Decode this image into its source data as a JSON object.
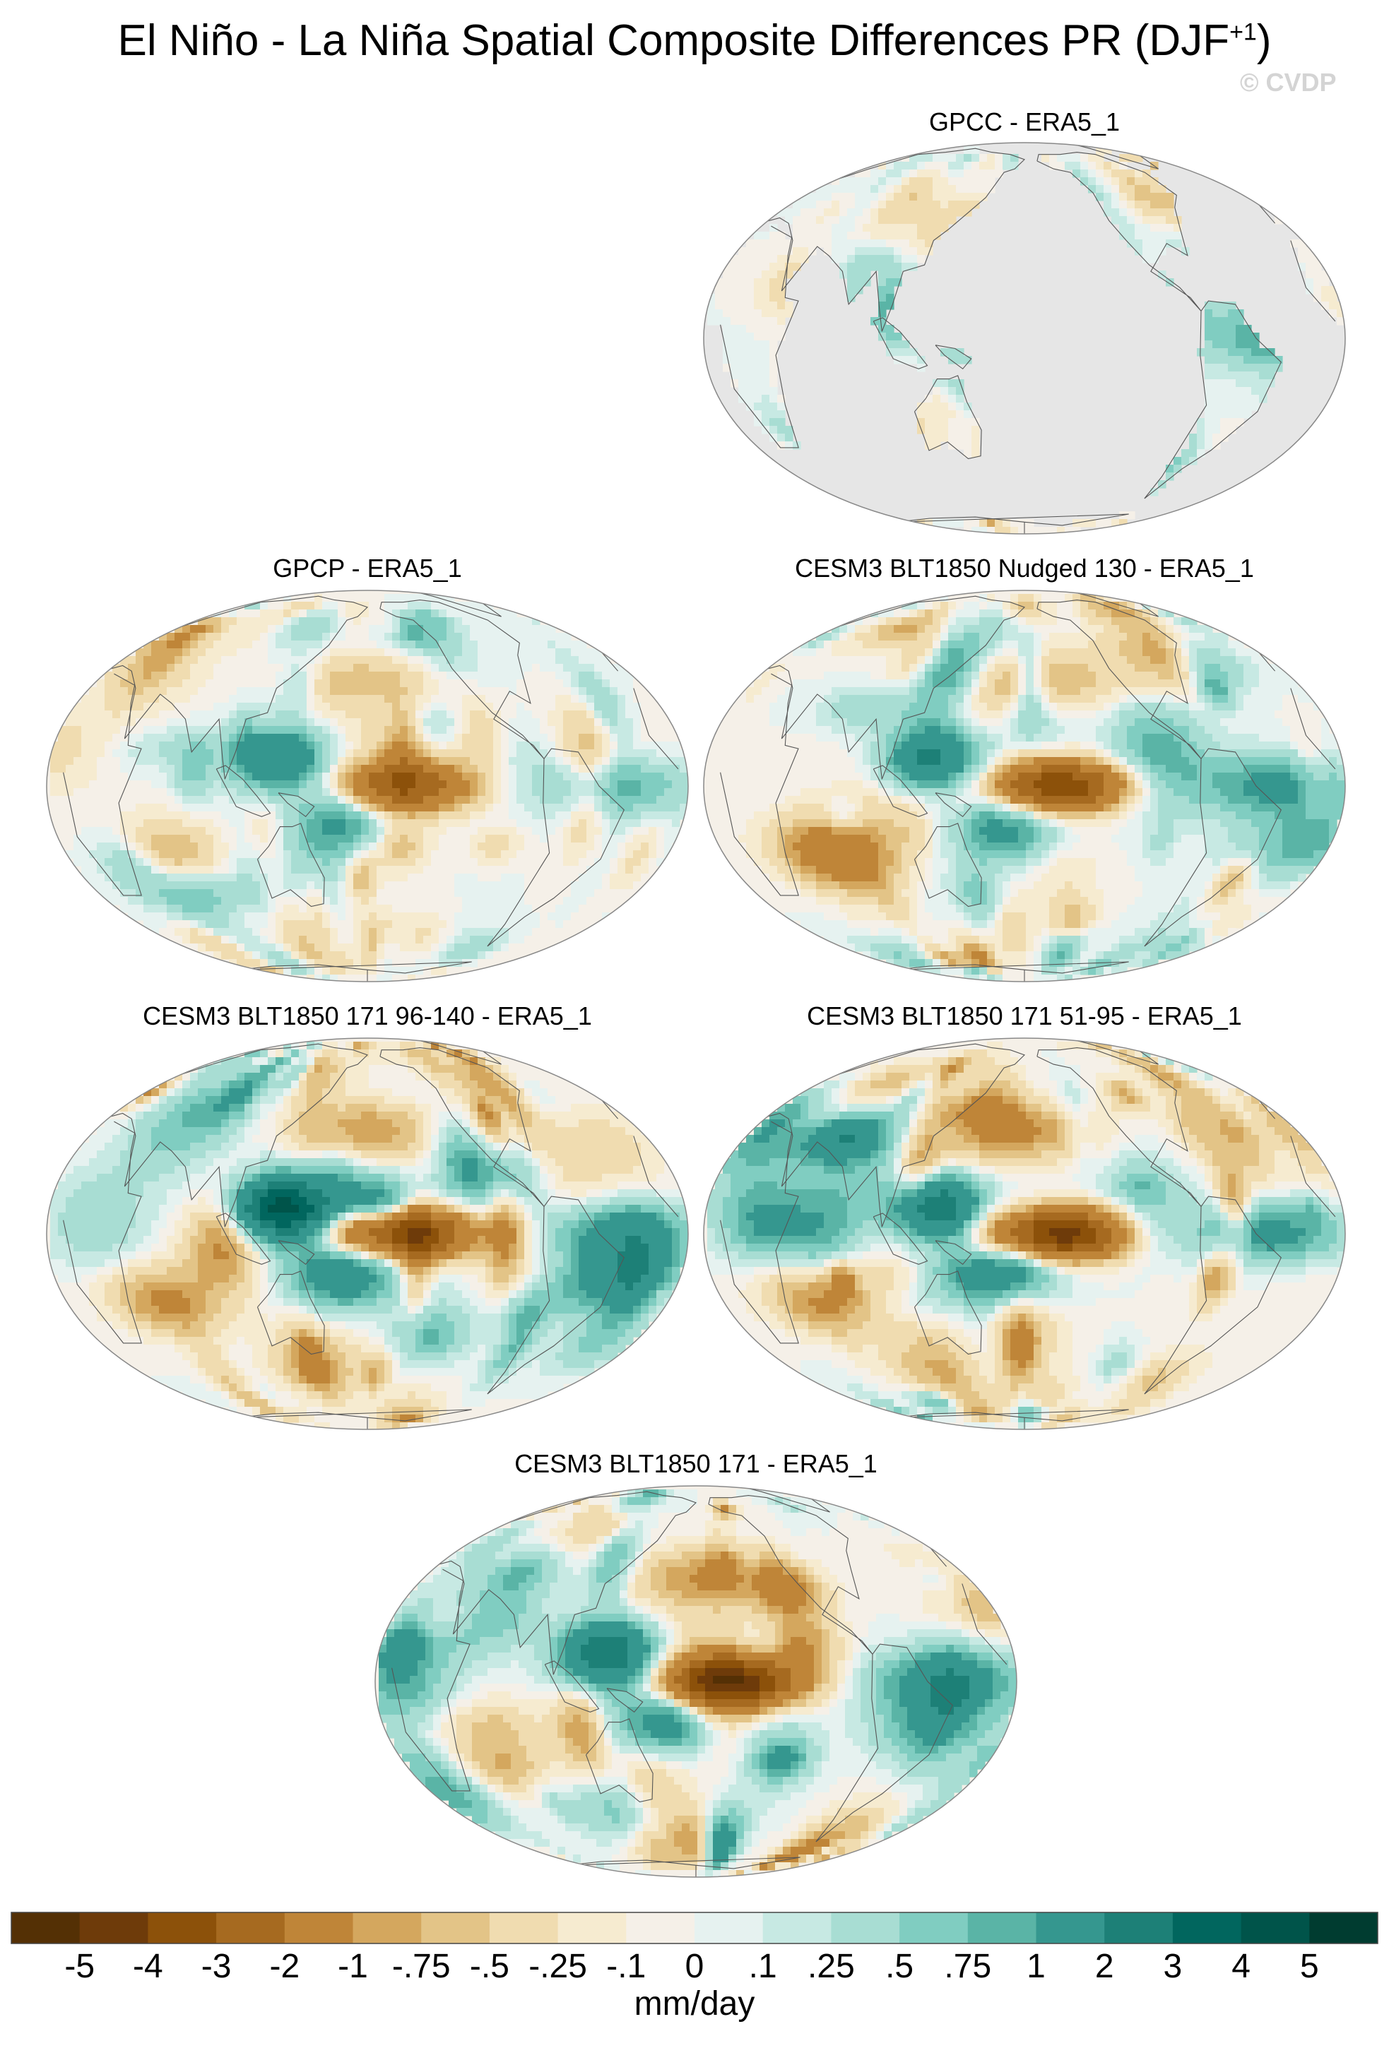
{
  "title": {
    "main": "El Niño - La Niña Spatial Composite Differences PR (DJF",
    "superscript": "+1",
    "close": ")"
  },
  "watermark": "© CVDP",
  "panels": [
    {
      "id": "gpcc",
      "title": "GPCC - ERA5_1",
      "ocean_masked": true,
      "strength": 0.6,
      "seed": 3
    },
    {
      "id": "gpcp",
      "title": "GPCP - ERA5_1",
      "ocean_masked": false,
      "strength": 0.65,
      "seed": 11
    },
    {
      "id": "nudged",
      "title": "CESM3 BLT1850 Nudged 130 - ERA5_1",
      "ocean_masked": false,
      "strength": 0.85,
      "seed": 17
    },
    {
      "id": "m96",
      "title": "CESM3 BLT1850 171 96-140 - ERA5_1",
      "ocean_masked": false,
      "strength": 1.0,
      "seed": 23
    },
    {
      "id": "m51",
      "title": "CESM3 BLT1850 171 51-95 - ERA5_1",
      "ocean_masked": false,
      "strength": 1.0,
      "seed": 29
    },
    {
      "id": "full",
      "title": "CESM3 BLT1850 171 - ERA5_1",
      "ocean_masked": false,
      "strength": 1.0,
      "seed": 37
    }
  ],
  "colorbar": {
    "colors": [
      "#543005",
      "#6e3b0a",
      "#8c510a",
      "#a66a20",
      "#bf8538",
      "#d4a75e",
      "#e3c487",
      "#f0dcb0",
      "#f6ebd0",
      "#f5f0e8",
      "#e6f2f0",
      "#c7e9e3",
      "#a8ddd3",
      "#80cdc1",
      "#5ab4a6",
      "#35978f",
      "#1d8077",
      "#01665e",
      "#00544a",
      "#003c30"
    ],
    "tick_labels": [
      "-5",
      "-4",
      "-3",
      "-2",
      "-1",
      "-.75",
      "-.5",
      "-.25",
      "-.1",
      "0",
      ".1",
      ".25",
      ".5",
      ".75",
      "1",
      "2",
      "3",
      "4",
      "5"
    ],
    "units": "mm/day"
  }
}
